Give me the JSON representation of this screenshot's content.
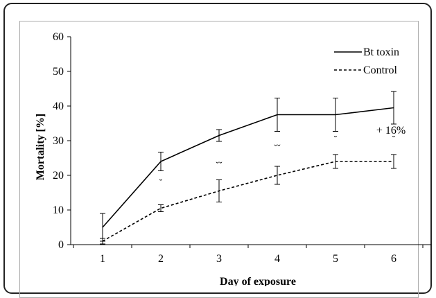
{
  "chart_data": {
    "type": "line",
    "title": "",
    "xlabel": "Day of exposure",
    "ylabel": "Mortality [%]",
    "categories": [
      "1",
      "2",
      "3",
      "4",
      "5",
      "6"
    ],
    "ylim": [
      0,
      60
    ],
    "yticks": [
      "0",
      "10",
      "20",
      "30",
      "40",
      "50",
      "60"
    ],
    "grid": false,
    "legend_position": "top-right",
    "series": [
      {
        "name": "Bt toxin",
        "style": "solid",
        "values": [
          5,
          24,
          31.5,
          37.5,
          37.5,
          39.5
        ],
        "errors": [
          4,
          2.7,
          1.7,
          4.8,
          4.8,
          4.7
        ]
      },
      {
        "name": "Control",
        "style": "dashed",
        "values": [
          1,
          10.5,
          15.5,
          20,
          24,
          24
        ],
        "errors": [
          0.8,
          1,
          3.2,
          2.6,
          2,
          2
        ]
      }
    ],
    "significance_marks": [
      {
        "x": "2",
        "y": 17,
        "text": "˘"
      },
      {
        "x": "3",
        "y": 22,
        "text": "˘˘"
      },
      {
        "x": "4",
        "y": 27,
        "text": "˘˘"
      },
      {
        "x": "5",
        "y": 29.5,
        "text": "˘"
      },
      {
        "x": "6",
        "y": 29.5,
        "text": "˘"
      }
    ],
    "annotations": [
      {
        "x": "6",
        "y": 32,
        "text": "+ 16%"
      }
    ]
  }
}
